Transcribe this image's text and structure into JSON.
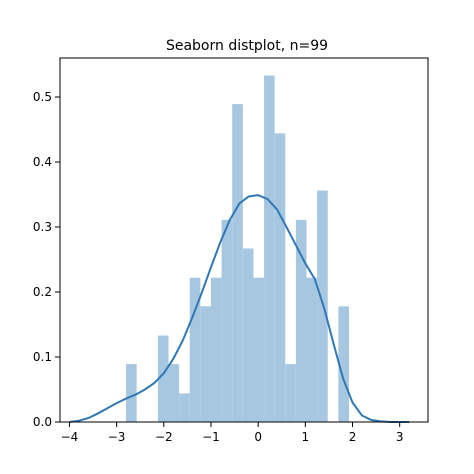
{
  "chart_data": {
    "type": "bar",
    "title": "Seaborn distplot, n=99",
    "xlabel": "",
    "ylabel": "",
    "xlim": [
      -4.2,
      3.6
    ],
    "ylim": [
      0,
      0.56
    ],
    "x_ticks": [
      -4,
      -3,
      -2,
      -1,
      0,
      1,
      2,
      3
    ],
    "x_tick_labels": [
      "−4",
      "−3",
      "−2",
      "−1",
      "0",
      "1",
      "2",
      "3"
    ],
    "y_ticks": [
      0.0,
      0.1,
      0.2,
      0.3,
      0.4,
      0.5
    ],
    "y_tick_labels": [
      "0.0",
      "0.1",
      "0.2",
      "0.3",
      "0.4",
      "0.5"
    ],
    "grid": false,
    "histogram": {
      "bin_width": 0.225,
      "bins": [
        {
          "x_start": -2.8,
          "density": 0.089
        },
        {
          "x_start": -2.575,
          "density": 0.0
        },
        {
          "x_start": -2.35,
          "density": 0.0
        },
        {
          "x_start": -2.125,
          "density": 0.133
        },
        {
          "x_start": -1.9,
          "density": 0.089
        },
        {
          "x_start": -1.675,
          "density": 0.044
        },
        {
          "x_start": -1.45,
          "density": 0.222
        },
        {
          "x_start": -1.225,
          "density": 0.178
        },
        {
          "x_start": -1.0,
          "density": 0.222
        },
        {
          "x_start": -0.775,
          "density": 0.311
        },
        {
          "x_start": -0.55,
          "density": 0.489
        },
        {
          "x_start": -0.325,
          "density": 0.267
        },
        {
          "x_start": -0.1,
          "density": 0.222
        },
        {
          "x_start": 0.125,
          "density": 0.533
        },
        {
          "x_start": 0.35,
          "density": 0.444
        },
        {
          "x_start": 0.575,
          "density": 0.089
        },
        {
          "x_start": 0.8,
          "density": 0.311
        },
        {
          "x_start": 1.025,
          "density": 0.222
        },
        {
          "x_start": 1.25,
          "density": 0.356
        },
        {
          "x_start": 1.475,
          "density": 0.0
        },
        {
          "x_start": 1.7,
          "density": 0.178
        }
      ]
    },
    "kde": {
      "x": [
        -4.0,
        -3.8,
        -3.6,
        -3.4,
        -3.2,
        -3.0,
        -2.8,
        -2.6,
        -2.4,
        -2.2,
        -2.0,
        -1.8,
        -1.6,
        -1.4,
        -1.2,
        -1.0,
        -0.8,
        -0.6,
        -0.4,
        -0.2,
        0.0,
        0.2,
        0.4,
        0.6,
        0.8,
        1.0,
        1.2,
        1.4,
        1.6,
        1.8,
        2.0,
        2.2,
        2.4,
        2.6,
        2.8,
        3.0,
        3.2
      ],
      "y": [
        0.0,
        0.002,
        0.006,
        0.013,
        0.021,
        0.029,
        0.036,
        0.042,
        0.05,
        0.06,
        0.075,
        0.097,
        0.125,
        0.16,
        0.198,
        0.238,
        0.277,
        0.311,
        0.336,
        0.347,
        0.349,
        0.343,
        0.327,
        0.3,
        0.272,
        0.244,
        0.22,
        0.175,
        0.12,
        0.067,
        0.03,
        0.01,
        0.003,
        0.001,
        0.0,
        0.0,
        0.0
      ]
    },
    "colors": {
      "bars": "#a7c7e0",
      "kde_line": "#2f78b5",
      "axes": "#000000"
    }
  }
}
